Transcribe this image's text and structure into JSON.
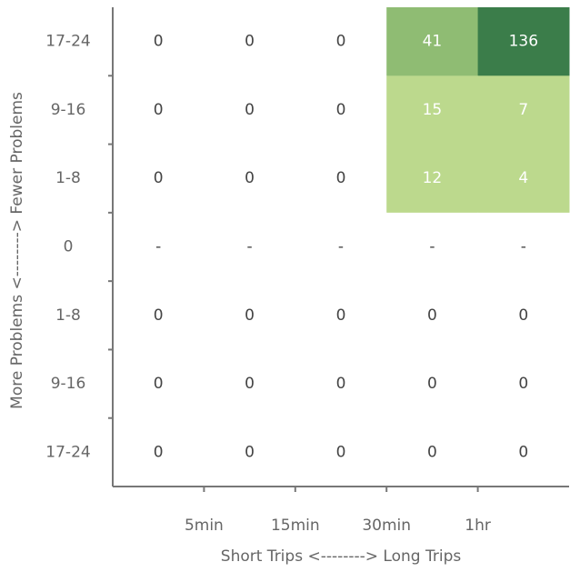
{
  "chart_data": {
    "type": "heatmap",
    "title": "",
    "xlabel": "Short Trips <--------> Long Trips",
    "ylabel": "More Problems <--------> Fewer Problems",
    "x_tick_labels": [
      "5min",
      "15min",
      "30min",
      "1hr"
    ],
    "row_labels": [
      "17-24",
      "9-16",
      "1-8",
      "0",
      "1-8",
      "9-16",
      "17-24"
    ],
    "column_count": 5,
    "cells": [
      [
        "0",
        "0",
        "0",
        "41",
        "136"
      ],
      [
        "0",
        "0",
        "0",
        "15",
        "7"
      ],
      [
        "0",
        "0",
        "0",
        "12",
        "4"
      ],
      [
        "-",
        "-",
        "-",
        "-",
        "-"
      ],
      [
        "0",
        "0",
        "0",
        "0",
        "0"
      ],
      [
        "0",
        "0",
        "0",
        "0",
        "0"
      ],
      [
        "0",
        "0",
        "0",
        "0",
        "0"
      ]
    ],
    "colors": {
      "high": "#3b7d4a",
      "mid": "#8fbc73",
      "low": "#bcd98d",
      "zero": "#ffffff",
      "text_dark": "#444444",
      "text_light": "#ffffff",
      "axis": "#777777"
    },
    "grid": false
  }
}
